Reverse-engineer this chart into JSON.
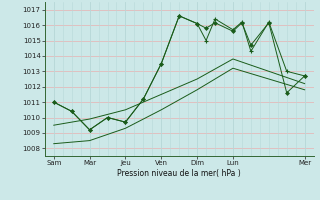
{
  "xlabel": "Pression niveau de la mer( hPa )",
  "ylim": [
    1007.5,
    1017.5
  ],
  "yticks": [
    1008,
    1009,
    1010,
    1011,
    1012,
    1013,
    1014,
    1015,
    1016,
    1017
  ],
  "day_labels": [
    "Sam",
    "Mar",
    "Jeu",
    "Ven",
    "Dim",
    "Lun",
    "Mer"
  ],
  "day_positions": [
    0,
    2,
    4,
    6,
    8,
    10,
    14
  ],
  "background_color": "#cce8e8",
  "line_color": "#1a5c1a",
  "grid_color_h": "#e8b0b0",
  "grid_color_v": "#b8d8d8",
  "lines": [
    {
      "x": [
        0,
        1,
        2,
        3,
        4,
        5,
        6,
        7,
        8,
        8.5,
        9,
        10,
        10.5,
        11,
        12,
        13,
        14
      ],
      "y": [
        1011.0,
        1010.4,
        1009.2,
        1010.0,
        1009.7,
        1011.2,
        1013.5,
        1016.6,
        1016.1,
        1015.0,
        1016.4,
        1015.7,
        1016.2,
        1014.3,
        1016.2,
        1013.0,
        1012.7
      ]
    },
    {
      "x": [
        0,
        1,
        2,
        3,
        4,
        5,
        6,
        7,
        8,
        8.5,
        9,
        10,
        10.5,
        11,
        12,
        13,
        14
      ],
      "y": [
        1011.0,
        1010.4,
        1009.2,
        1010.0,
        1009.7,
        1011.2,
        1013.5,
        1016.6,
        1016.1,
        1015.8,
        1016.15,
        1015.6,
        1016.15,
        1014.7,
        1016.15,
        1011.6,
        1012.7
      ]
    },
    {
      "x": [
        0,
        2,
        4,
        6,
        8,
        10,
        14
      ],
      "y": [
        1009.5,
        1009.9,
        1010.5,
        1011.5,
        1012.5,
        1013.8,
        1012.2
      ]
    },
    {
      "x": [
        0,
        2,
        4,
        6,
        8,
        10,
        14
      ],
      "y": [
        1008.3,
        1008.5,
        1009.3,
        1010.5,
        1011.8,
        1013.2,
        1011.8
      ]
    }
  ]
}
